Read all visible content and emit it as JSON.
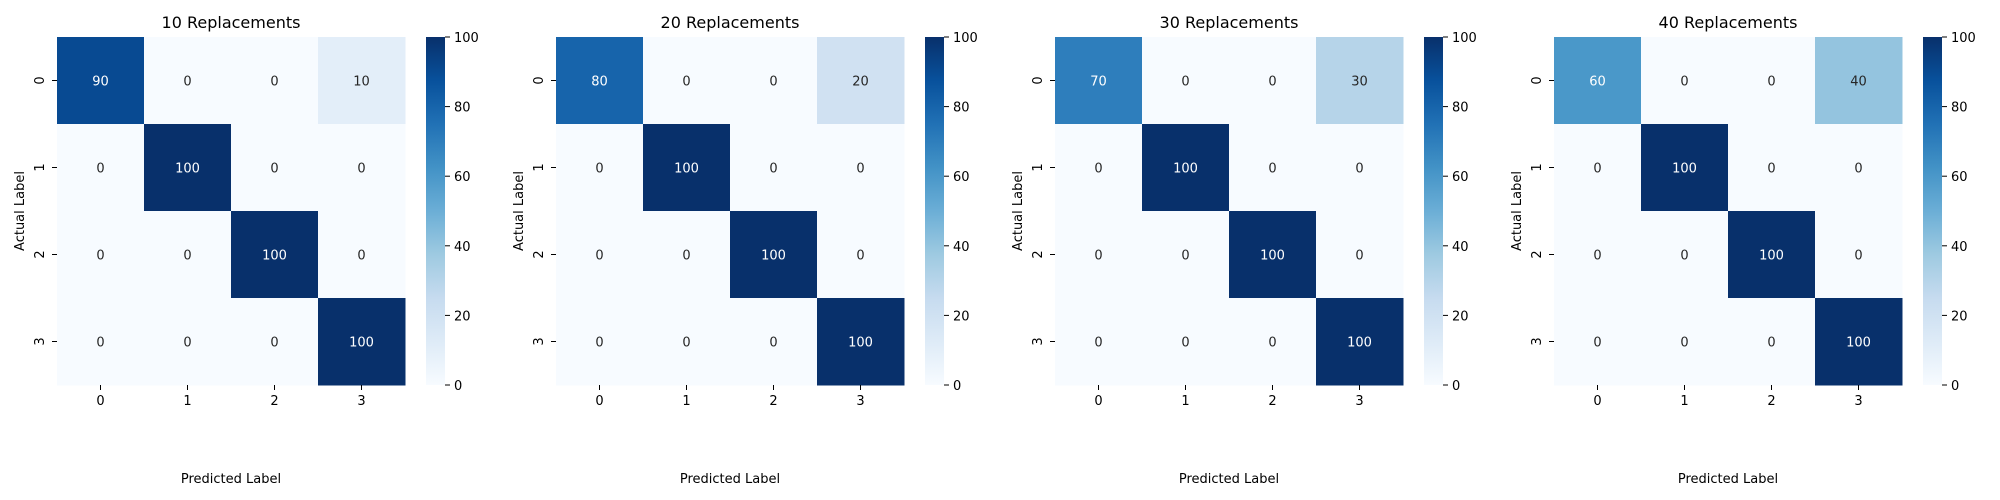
{
  "chart_data": [
    {
      "type": "heatmap",
      "title": "10 Replacements",
      "xlabel": "Predicted Label",
      "ylabel": "Actual Label",
      "x_categories": [
        "0",
        "1",
        "2",
        "3"
      ],
      "y_categories": [
        "0",
        "1",
        "2",
        "3"
      ],
      "values": [
        [
          90,
          0,
          0,
          10
        ],
        [
          0,
          100,
          0,
          0
        ],
        [
          0,
          0,
          100,
          0
        ],
        [
          0,
          0,
          0,
          100
        ]
      ],
      "colorbar": {
        "min": 0,
        "max": 100,
        "ticks": [
          "0",
          "20",
          "40",
          "60",
          "80",
          "100"
        ],
        "colormap": "Blues"
      }
    },
    {
      "type": "heatmap",
      "title": "20 Replacements",
      "xlabel": "Predicted Label",
      "ylabel": "Actual Label",
      "x_categories": [
        "0",
        "1",
        "2",
        "3"
      ],
      "y_categories": [
        "0",
        "1",
        "2",
        "3"
      ],
      "values": [
        [
          80,
          0,
          0,
          20
        ],
        [
          0,
          100,
          0,
          0
        ],
        [
          0,
          0,
          100,
          0
        ],
        [
          0,
          0,
          0,
          100
        ]
      ],
      "colorbar": {
        "min": 0,
        "max": 100,
        "ticks": [
          "0",
          "20",
          "40",
          "60",
          "80",
          "100"
        ],
        "colormap": "Blues"
      }
    },
    {
      "type": "heatmap",
      "title": "30 Replacements",
      "xlabel": "Predicted Label",
      "ylabel": "Actual Label",
      "x_categories": [
        "0",
        "1",
        "2",
        "3"
      ],
      "y_categories": [
        "0",
        "1",
        "2",
        "3"
      ],
      "values": [
        [
          70,
          0,
          0,
          30
        ],
        [
          0,
          100,
          0,
          0
        ],
        [
          0,
          0,
          100,
          0
        ],
        [
          0,
          0,
          0,
          100
        ]
      ],
      "colorbar": {
        "min": 0,
        "max": 100,
        "ticks": [
          "0",
          "20",
          "40",
          "60",
          "80",
          "100"
        ],
        "colormap": "Blues"
      }
    },
    {
      "type": "heatmap",
      "title": "40 Replacements",
      "xlabel": "Predicted Label",
      "ylabel": "Actual Label",
      "x_categories": [
        "0",
        "1",
        "2",
        "3"
      ],
      "y_categories": [
        "0",
        "1",
        "2",
        "3"
      ],
      "values": [
        [
          60,
          0,
          0,
          40
        ],
        [
          0,
          100,
          0,
          0
        ],
        [
          0,
          0,
          100,
          0
        ],
        [
          0,
          0,
          0,
          100
        ]
      ],
      "colorbar": {
        "min": 0,
        "max": 100,
        "ticks": [
          "0",
          "20",
          "40",
          "60",
          "80",
          "100"
        ],
        "colormap": "Blues"
      }
    }
  ]
}
